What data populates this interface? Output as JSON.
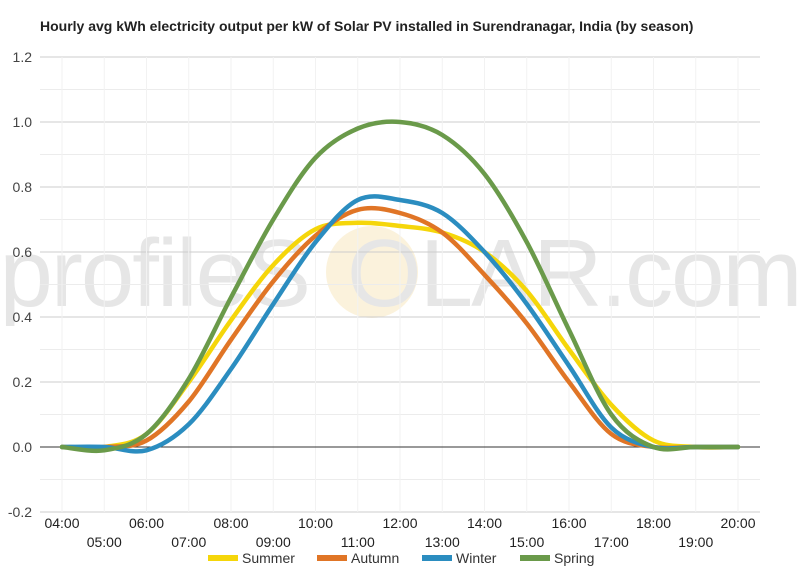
{
  "chart_data": {
    "type": "line",
    "title": "Hourly avg kWh electricity output per kW of Solar PV installed in Surendranagar, India (by season)",
    "xlabel": "",
    "ylabel": "",
    "ylim": [
      -0.2,
      1.2
    ],
    "y_ticks": [
      "-0.2",
      "0.0",
      "0.2",
      "0.4",
      "0.6",
      "0.8",
      "1.0",
      "1.2"
    ],
    "x_ticks_upper": [
      "04:00",
      "06:00",
      "08:00",
      "10:00",
      "12:00",
      "14:00",
      "16:00",
      "18:00",
      "20:00"
    ],
    "x_ticks_lower": [
      "05:00",
      "07:00",
      "09:00",
      "11:00",
      "13:00",
      "15:00",
      "17:00",
      "19:00"
    ],
    "grid": true,
    "legend_position": "bottom",
    "watermark": "profileSOLAR.com",
    "x": [
      "04:00",
      "05:00",
      "06:00",
      "07:00",
      "08:00",
      "09:00",
      "10:00",
      "11:00",
      "12:00",
      "13:00",
      "14:00",
      "15:00",
      "16:00",
      "17:00",
      "18:00",
      "19:00",
      "20:00"
    ],
    "series": [
      {
        "name": "Summer",
        "color": "#f5d60a",
        "values": [
          0.0,
          0.0,
          0.04,
          0.2,
          0.39,
          0.56,
          0.67,
          0.69,
          0.68,
          0.66,
          0.6,
          0.48,
          0.3,
          0.13,
          0.02,
          0.0,
          0.0
        ]
      },
      {
        "name": "Autumn",
        "color": "#e07526",
        "values": [
          0.0,
          0.0,
          0.02,
          0.14,
          0.33,
          0.51,
          0.65,
          0.73,
          0.72,
          0.66,
          0.53,
          0.38,
          0.2,
          0.04,
          0.0,
          0.0,
          0.0
        ]
      },
      {
        "name": "Winter",
        "color": "#2b8dc0",
        "values": [
          0.0,
          0.0,
          -0.01,
          0.07,
          0.24,
          0.44,
          0.63,
          0.76,
          0.76,
          0.72,
          0.6,
          0.44,
          0.25,
          0.06,
          0.0,
          0.0,
          0.0
        ]
      },
      {
        "name": "Spring",
        "color": "#6a9a4a",
        "values": [
          0.0,
          -0.01,
          0.04,
          0.21,
          0.46,
          0.7,
          0.89,
          0.98,
          1.0,
          0.96,
          0.84,
          0.63,
          0.36,
          0.1,
          0.0,
          0.0,
          0.0
        ]
      }
    ]
  }
}
